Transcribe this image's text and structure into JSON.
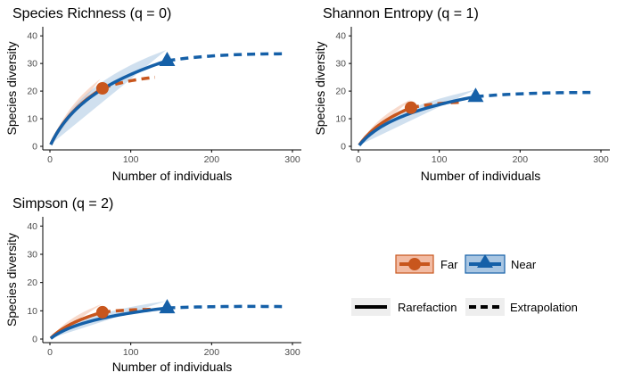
{
  "colors": {
    "far": "#C8561D",
    "near": "#1560A8",
    "far_band": "#F2BBA3",
    "near_band": "#A9C6E2",
    "axis": "#000000",
    "tick_text": "#4d4d4d",
    "legend_key_bg": "#eeeeee"
  },
  "legend": {
    "groups": [
      {
        "name": "Far",
        "color": "#C8561D",
        "marker": "circle"
      },
      {
        "name": "Near",
        "color": "#1560A8",
        "marker": "triangle"
      }
    ],
    "linetypes": [
      {
        "name": "Rarefaction",
        "style": "solid"
      },
      {
        "name": "Extrapolation",
        "style": "dashed"
      }
    ]
  },
  "chart_data": [
    {
      "type": "line",
      "title": "Species Richness (q = 0)",
      "xlabel": "Number of individuals",
      "ylabel": "Species diversity",
      "xlim": [
        0,
        300
      ],
      "ylim": [
        0,
        42
      ],
      "xticks": [
        0,
        100,
        200,
        300
      ],
      "yticks": [
        0,
        10,
        20,
        30,
        40
      ],
      "grid": false,
      "series": [
        {
          "name": "Far",
          "observed": {
            "x": 65,
            "y": 21
          },
          "end": {
            "x": 130,
            "y": 25
          },
          "band": {
            "lower_at_observed": 17,
            "upper_at_observed": 25,
            "lower_end": 18,
            "upper_end": 32
          },
          "rarefaction": {
            "x": [
              1,
              5,
              10,
              20,
              30,
              40,
              50,
              65
            ],
            "y": [
              1.5,
              4.5,
              7.5,
              11.5,
              14.5,
              17,
              19,
              21
            ]
          },
          "extrapolation": {
            "x": [
              65,
              80,
              100,
              115,
              130
            ],
            "y": [
              21,
              22.3,
              23.6,
              24.4,
              25
            ]
          }
        },
        {
          "name": "Near",
          "observed": {
            "x": 145,
            "y": 31
          },
          "end": {
            "x": 287,
            "y": 33.5
          },
          "band": {
            "lower_at_observed": 27,
            "upper_at_observed": 35,
            "lower_end": 27,
            "upper_end": 39.5
          },
          "rarefaction": {
            "x": [
              1,
              5,
              10,
              20,
              30,
              40,
              60,
              80,
              100,
              120,
              145
            ],
            "y": [
              1.5,
              4.5,
              7.5,
              12,
              15.5,
              18,
              22,
              25,
              27.5,
              29.5,
              31
            ]
          },
          "extrapolation": {
            "x": [
              145,
              175,
              205,
              235,
              260,
              287
            ],
            "y": [
              31,
              32,
              32.6,
              33,
              33.3,
              33.5
            ]
          }
        }
      ]
    },
    {
      "type": "line",
      "title": "Shannon Entropy (q = 1)",
      "xlabel": "Number of individuals",
      "ylabel": "Species diversity",
      "xlim": [
        0,
        300
      ],
      "ylim": [
        0,
        42
      ],
      "xticks": [
        0,
        100,
        200,
        300
      ],
      "yticks": [
        0,
        10,
        20,
        30,
        40
      ],
      "grid": false,
      "series": [
        {
          "name": "Far",
          "observed": {
            "x": 65,
            "y": 14
          },
          "end": {
            "x": 128,
            "y": 16
          },
          "band": {
            "lower_at_observed": 10.5,
            "upper_at_observed": 17,
            "lower_end": 11,
            "upper_end": 18.5
          },
          "rarefaction": {
            "x": [
              1,
              5,
              10,
              20,
              30,
              40,
              50,
              65
            ],
            "y": [
              1.5,
              4,
              6.5,
              9,
              11,
              12.3,
              13.2,
              14
            ]
          },
          "extrapolation": {
            "x": [
              65,
              80,
              100,
              115,
              128
            ],
            "y": [
              14,
              14.8,
              15.4,
              15.8,
              16
            ]
          }
        },
        {
          "name": "Near",
          "observed": {
            "x": 145,
            "y": 18
          },
          "end": {
            "x": 287,
            "y": 19.5
          },
          "band": {
            "lower_at_observed": 15.5,
            "upper_at_observed": 20.5,
            "lower_end": 16,
            "upper_end": 23
          }
        },
        {
          "name": "Near-curve",
          "rarefaction": {
            "x": [
              1,
              5,
              10,
              20,
              30,
              40,
              60,
              80,
              100,
              120,
              145
            ],
            "y": [
              1.5,
              4,
              6.5,
              9.5,
              11.5,
              13,
              15,
              16.2,
              17,
              17.6,
              18
            ]
          },
          "extrapolation": {
            "x": [
              145,
              175,
              205,
              235,
              260,
              287
            ],
            "y": [
              18,
              18.5,
              18.9,
              19.2,
              19.4,
              19.5
            ]
          }
        }
      ]
    },
    {
      "type": "line",
      "title": "Simpson (q = 2)",
      "xlabel": "Number of individuals",
      "ylabel": "Species diversity",
      "xlim": [
        0,
        300
      ],
      "ylim": [
        0,
        42
      ],
      "xticks": [
        0,
        100,
        200,
        300
      ],
      "yticks": [
        0,
        10,
        20,
        30,
        40
      ],
      "grid": false,
      "series": [
        {
          "name": "Far",
          "observed": {
            "x": 65,
            "y": 9.5
          },
          "end": {
            "x": 128,
            "y": 10.5
          },
          "band": {
            "lower_at_observed": 7,
            "upper_at_observed": 12.5,
            "lower_end": 7,
            "upper_end": 13
          }
        },
        {
          "name": "Near",
          "observed": {
            "x": 145,
            "y": 11
          },
          "end": {
            "x": 287,
            "y": 11.5
          },
          "band": {
            "lower_at_observed": 9,
            "upper_at_observed": 13.5,
            "lower_end": 9,
            "upper_end": 14.5
          }
        },
        {
          "name": "Near-curve",
          "rarefaction": {
            "x": [
              1,
              5,
              10,
              20,
              30,
              40,
              60,
              80,
              100,
              120,
              145
            ],
            "y": [
              1.5,
              3.5,
              5.3,
              7.2,
              8.3,
              9,
              9.8,
              10.3,
              10.6,
              10.8,
              11
            ]
          },
          "extrapolation": {
            "x": [
              145,
              175,
              205,
              235,
              260,
              287
            ],
            "y": [
              11,
              11.2,
              11.3,
              11.4,
              11.45,
              11.5
            ]
          }
        }
      ]
    }
  ]
}
